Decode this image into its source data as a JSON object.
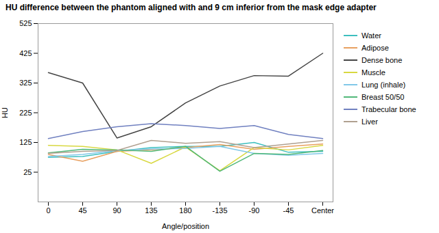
{
  "chart_data": {
    "type": "line",
    "title": "HU difference between the phantom aligned with and 9 cm inferior from the mask edge adapter",
    "xlabel": "Angle/position",
    "ylabel": "HU",
    "categories": [
      "0",
      "45",
      "90",
      "135",
      "180",
      "-135",
      "-90",
      "-45",
      "Center"
    ],
    "series": [
      {
        "name": "Water",
        "color": "#3dbfbf",
        "values": [
          75,
          78,
          95,
          108,
          112,
          112,
          125,
          92,
          95
        ]
      },
      {
        "name": "Adipose",
        "color": "#e8a060",
        "values": [
          85,
          62,
          95,
          100,
          108,
          118,
          102,
          112,
          120
        ]
      },
      {
        "name": "Dense bone",
        "color": "#444444",
        "values": [
          360,
          325,
          140,
          178,
          258,
          315,
          350,
          348,
          425
        ]
      },
      {
        "name": "Muscle",
        "color": "#d8d840",
        "values": [
          115,
          112,
          100,
          55,
          110,
          30,
          108,
          100,
          115
        ]
      },
      {
        "name": "Lung (inhale)",
        "color": "#80c8e8",
        "values": [
          78,
          85,
          98,
          103,
          105,
          112,
          88,
          82,
          88
        ]
      },
      {
        "name": "Breast 50/50",
        "color": "#50b878",
        "values": [
          90,
          102,
          100,
          95,
          112,
          28,
          88,
          85,
          98
        ]
      },
      {
        "name": "Trabecular bone",
        "color": "#7080c0",
        "values": [
          138,
          162,
          178,
          188,
          182,
          172,
          182,
          152,
          138
        ]
      },
      {
        "name": "Liver",
        "color": "#b0a090",
        "values": [
          88,
          95,
          98,
          132,
          122,
          128,
          108,
          120,
          132
        ]
      }
    ],
    "ylim": [
      -75,
      525
    ],
    "yticks": [
      25,
      125,
      225,
      325,
      425,
      525
    ],
    "legend": "right"
  }
}
